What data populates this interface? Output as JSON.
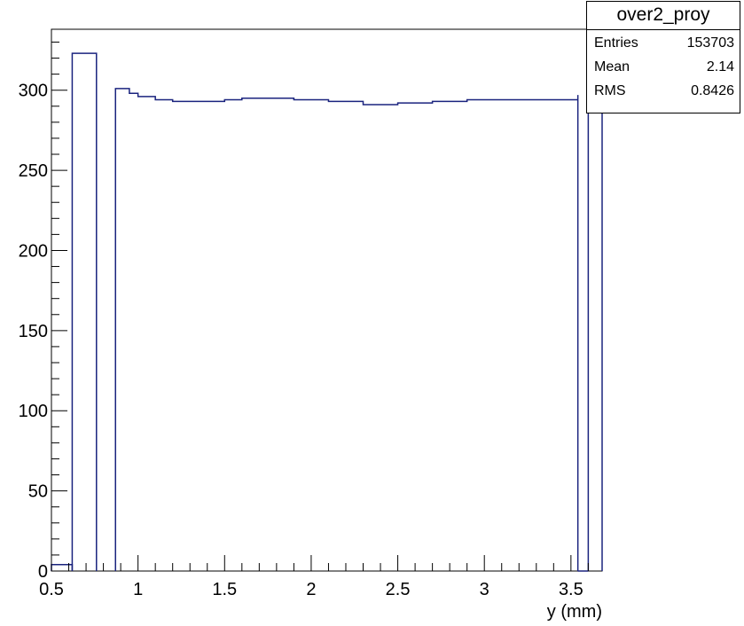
{
  "chart_data": {
    "type": "histogram",
    "xlabel": "y (mm)",
    "ylabel": "",
    "xlim": [
      0.5,
      3.68
    ],
    "ylim": [
      0,
      338
    ],
    "x_ticks": [
      0.5,
      1,
      1.5,
      2,
      2.5,
      3,
      3.5
    ],
    "x_tick_labels": [
      "0.5",
      "1",
      "1.5",
      "2",
      "2.5",
      "3",
      "3.5"
    ],
    "y_ticks": [
      0,
      50,
      100,
      150,
      200,
      250,
      300
    ],
    "y_tick_labels": [
      "0",
      "50",
      "100",
      "150",
      "200",
      "250",
      "300"
    ],
    "line_color": "#1a237e",
    "segments": [
      {
        "x": [
          0.5,
          0.62
        ],
        "y": [
          4,
          4
        ]
      },
      {
        "x": [
          0.62,
          0.76
        ],
        "y": [
          323,
          314
        ]
      },
      {
        "x": [
          0.87,
          0.95,
          1.0,
          1.1,
          1.2,
          1.5,
          1.6,
          1.7,
          1.9,
          2.1,
          2.3,
          2.5,
          2.7,
          2.9,
          3.1,
          3.3,
          3.45,
          3.54
        ],
        "y": [
          301,
          298,
          296,
          294,
          293,
          294,
          295,
          295,
          294,
          293,
          291,
          292,
          293,
          294,
          294,
          294,
          294,
          297
        ]
      },
      {
        "x": [
          3.54,
          3.6
        ],
        "y": [
          0,
          0
        ]
      },
      {
        "x": [
          3.6,
          3.68
        ],
        "y": [
          295,
          295
        ]
      }
    ]
  },
  "stats": {
    "title": "over2_proy",
    "entries_label": "Entries",
    "entries_value": "153703",
    "mean_label": "Mean",
    "mean_value": "2.14",
    "rms_label": "RMS",
    "rms_value": "0.8426"
  }
}
